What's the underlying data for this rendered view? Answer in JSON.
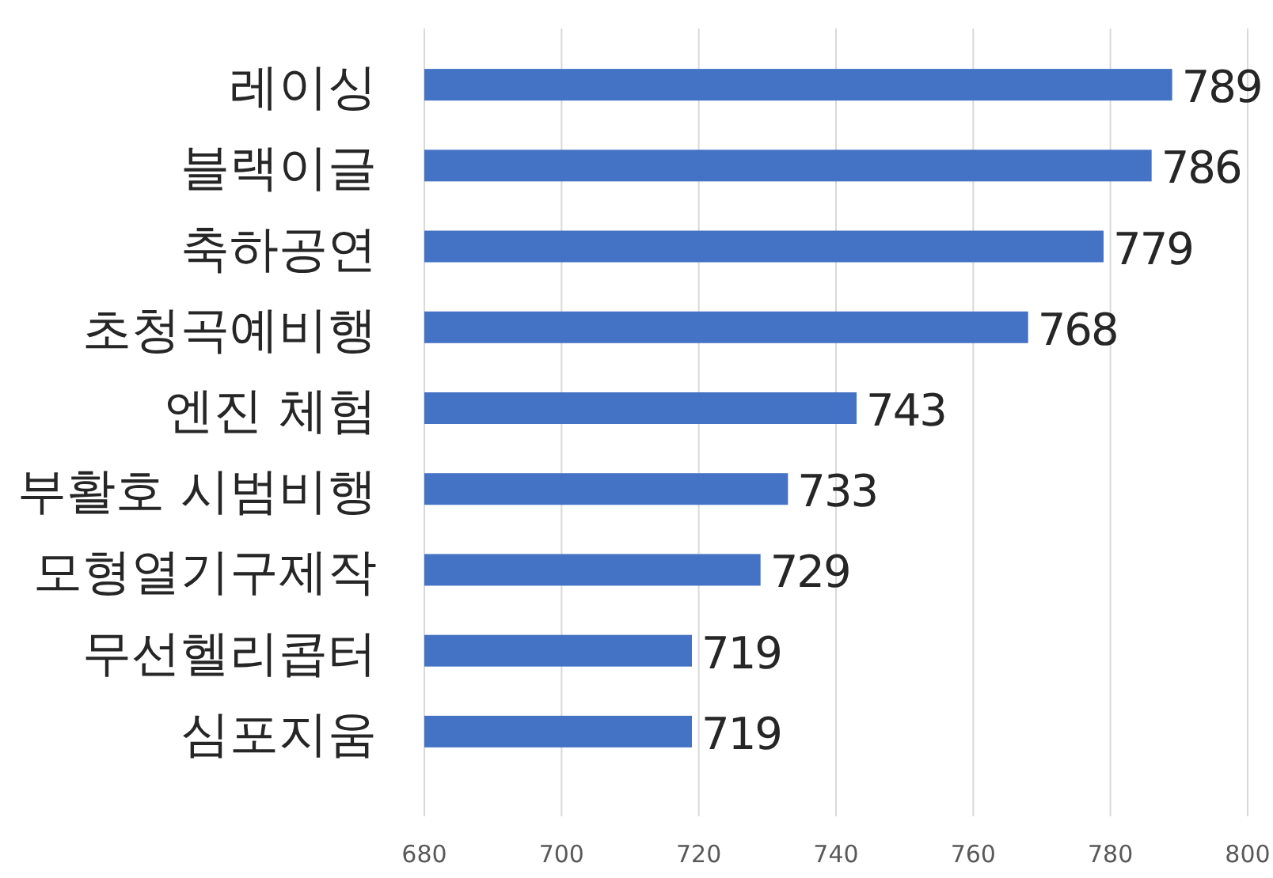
{
  "chart_data": {
    "type": "bar",
    "orientation": "horizontal",
    "categories": [
      "레이싱",
      "블랙이글",
      "축하공연",
      "초청곡예비행",
      "엔진 체험",
      "부활호 시범비행",
      "모형열기구제작",
      "무선헬리콥터",
      "심포지움"
    ],
    "values": [
      789,
      786,
      779,
      768,
      743,
      733,
      729,
      719,
      719
    ],
    "color": "#4472c4",
    "xlim": [
      680,
      800
    ],
    "xticks": [
      680,
      700,
      720,
      740,
      760,
      780,
      800
    ],
    "grid": "x",
    "data_labels": true
  }
}
